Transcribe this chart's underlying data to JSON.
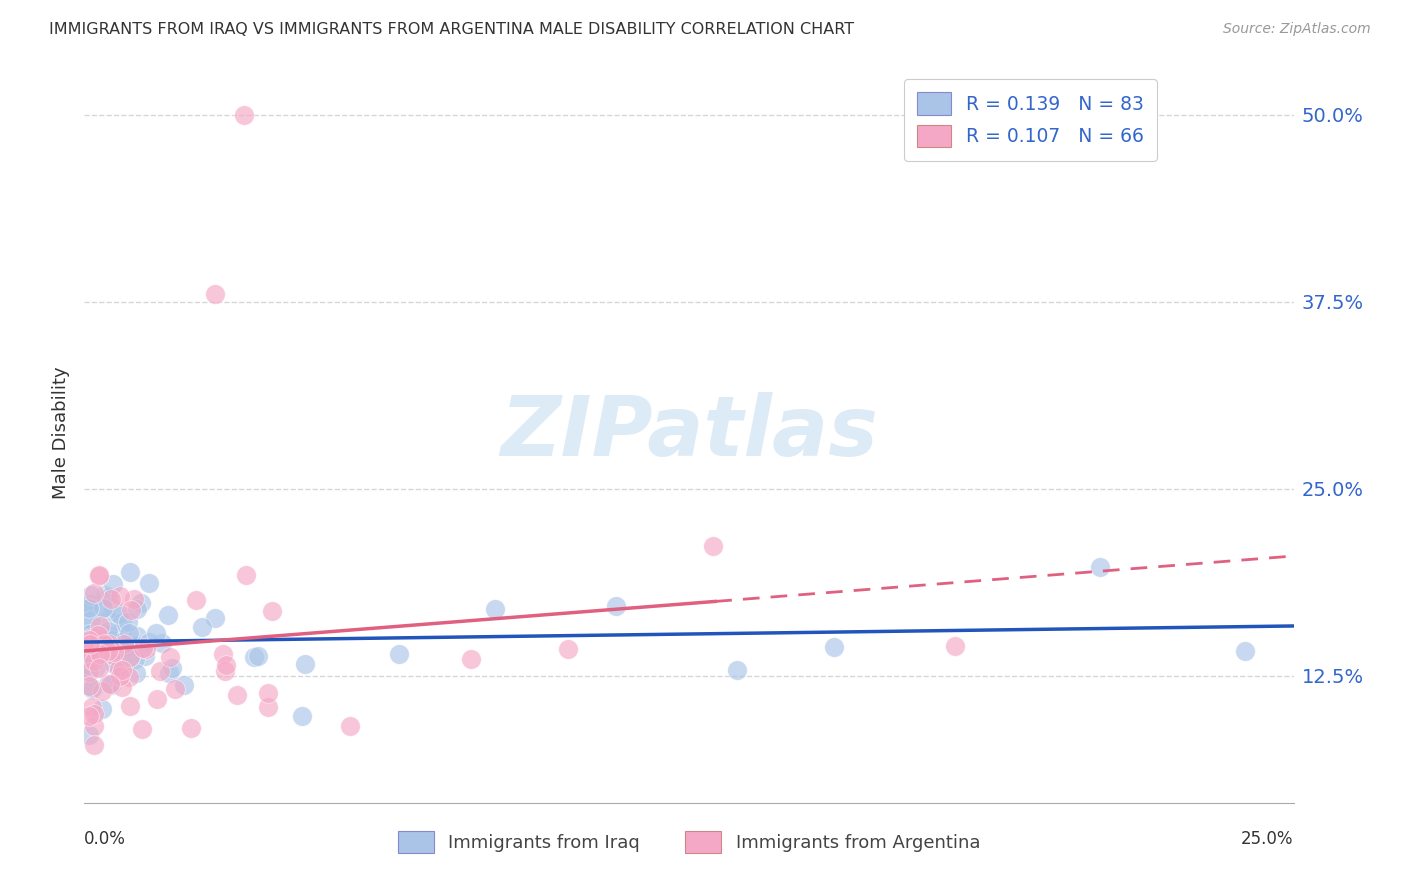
{
  "title": "IMMIGRANTS FROM IRAQ VS IMMIGRANTS FROM ARGENTINA MALE DISABILITY CORRELATION CHART",
  "source": "Source: ZipAtlas.com",
  "ylabel": "Male Disability",
  "right_yticks": [
    0.125,
    0.25,
    0.375,
    0.5
  ],
  "right_yticklabels": [
    "12.5%",
    "25.0%",
    "37.5%",
    "50.0%"
  ],
  "xlim": [
    0.0,
    0.25
  ],
  "ylim": [
    0.04,
    0.535
  ],
  "iraq_color": "#aac4e8",
  "argentina_color": "#f5a8c5",
  "iraq_line_color": "#2255bb",
  "argentina_line_color": "#e06080",
  "iraq_R": 0.139,
  "iraq_N": 83,
  "argentina_R": 0.107,
  "argentina_N": 66,
  "watermark": "ZIPatlas",
  "background_color": "#ffffff",
  "grid_color": "#cccccc",
  "title_color": "#333333",
  "axis_color": "#aaaaaa",
  "legend_text_color": "#3366cc"
}
